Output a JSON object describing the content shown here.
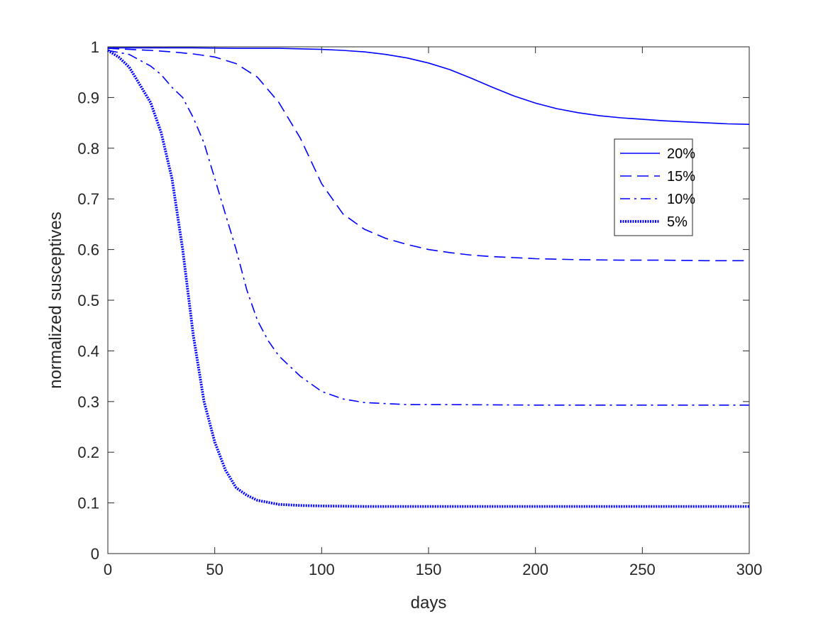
{
  "chart_data": {
    "type": "line",
    "title": "",
    "xlabel": "days",
    "ylabel": "normalized susceptives",
    "xlim": [
      0,
      300
    ],
    "ylim": [
      0,
      1
    ],
    "xticks": [
      0,
      50,
      100,
      150,
      200,
      250,
      300
    ],
    "yticks": [
      0,
      0.1,
      0.2,
      0.3,
      0.4,
      0.5,
      0.6,
      0.7,
      0.8,
      0.9,
      1
    ],
    "xtick_labels": [
      "0",
      "50",
      "100",
      "150",
      "200",
      "250",
      "300"
    ],
    "ytick_labels": [
      "0",
      "0.1",
      "0.2",
      "0.3",
      "0.4",
      "0.5",
      "0.6",
      "0.7",
      "0.8",
      "0.9",
      "1"
    ],
    "grid": false,
    "legend_position": "right",
    "line_color": "#0000ff",
    "series": [
      {
        "name": "20%",
        "style": "solid",
        "x": [
          0,
          20,
          40,
          60,
          80,
          100,
          110,
          120,
          130,
          140,
          150,
          160,
          170,
          180,
          190,
          200,
          210,
          220,
          230,
          240,
          250,
          260,
          270,
          280,
          290,
          300
        ],
        "y": [
          0.998,
          0.998,
          0.998,
          0.997,
          0.997,
          0.995,
          0.993,
          0.99,
          0.985,
          0.978,
          0.968,
          0.955,
          0.938,
          0.92,
          0.903,
          0.889,
          0.878,
          0.87,
          0.864,
          0.86,
          0.857,
          0.854,
          0.852,
          0.85,
          0.848,
          0.847
        ]
      },
      {
        "name": "15%",
        "style": "dashed",
        "x": [
          0,
          10,
          20,
          30,
          40,
          50,
          60,
          70,
          80,
          90,
          100,
          110,
          120,
          130,
          140,
          150,
          160,
          170,
          180,
          190,
          200,
          220,
          240,
          260,
          280,
          300
        ],
        "y": [
          0.997,
          0.995,
          0.993,
          0.99,
          0.986,
          0.98,
          0.967,
          0.94,
          0.89,
          0.82,
          0.73,
          0.67,
          0.64,
          0.622,
          0.61,
          0.6,
          0.594,
          0.589,
          0.586,
          0.584,
          0.582,
          0.58,
          0.579,
          0.579,
          0.578,
          0.578
        ]
      },
      {
        "name": "10%",
        "style": "dashdot",
        "x": [
          0,
          10,
          20,
          25,
          30,
          35,
          40,
          45,
          50,
          55,
          60,
          65,
          70,
          75,
          80,
          90,
          100,
          110,
          120,
          140,
          160,
          200,
          250,
          300
        ],
        "y": [
          0.993,
          0.985,
          0.962,
          0.945,
          0.92,
          0.9,
          0.86,
          0.81,
          0.74,
          0.67,
          0.6,
          0.52,
          0.46,
          0.42,
          0.39,
          0.35,
          0.32,
          0.305,
          0.298,
          0.294,
          0.294,
          0.293,
          0.293,
          0.293
        ]
      },
      {
        "name": "5%",
        "style": "dotted",
        "x": [
          0,
          5,
          10,
          15,
          20,
          25,
          30,
          35,
          40,
          45,
          50,
          55,
          60,
          65,
          70,
          80,
          90,
          100,
          120,
          150,
          200,
          250,
          300
        ],
        "y": [
          0.993,
          0.98,
          0.96,
          0.925,
          0.89,
          0.83,
          0.74,
          0.6,
          0.43,
          0.3,
          0.22,
          0.165,
          0.13,
          0.115,
          0.105,
          0.097,
          0.095,
          0.094,
          0.093,
          0.093,
          0.093,
          0.093,
          0.093
        ]
      }
    ]
  }
}
